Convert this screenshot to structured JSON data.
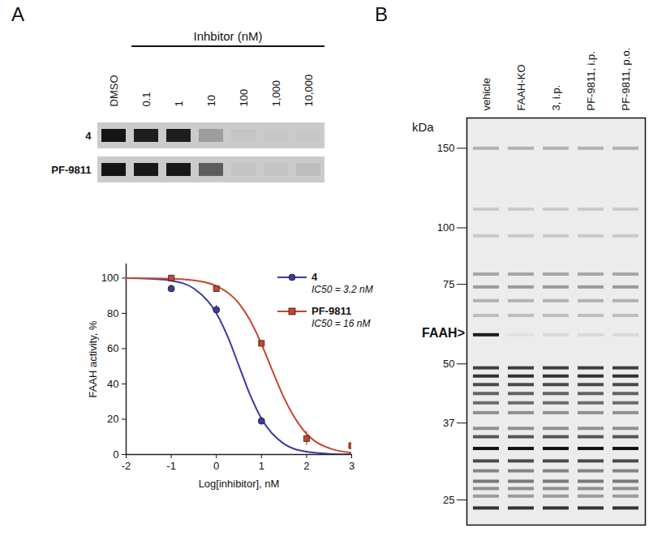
{
  "panel_labels": [
    "A",
    "B"
  ],
  "gel_a": {
    "header": "Inhbitor (nM)",
    "lanes": [
      "DMSO",
      "0.1",
      "1",
      "10",
      "100",
      "1,000",
      "10,000"
    ],
    "rows": [
      {
        "name": "4",
        "band_intensity": [
          100,
          95,
          95,
          25,
          3,
          2,
          2
        ]
      },
      {
        "name": "PF-9811",
        "band_intensity": [
          100,
          98,
          98,
          60,
          4,
          4,
          8
        ]
      }
    ]
  },
  "chart_data": {
    "type": "line",
    "x_label": "Log[inhibitor], nM",
    "y_label": "FAAH activity, %",
    "xlim": [
      -2,
      3
    ],
    "xticks": [
      -2,
      -1,
      0,
      1,
      2,
      3
    ],
    "ylim": [
      0,
      108
    ],
    "yticks": [
      0,
      20,
      40,
      60,
      80,
      100
    ],
    "grid": false,
    "legend": "top-right",
    "series": [
      {
        "name": "4",
        "color": "#3a3aa0",
        "marker": "circle",
        "annotation": "IC50 = 3.2 nM",
        "x": [
          -1,
          0,
          1
        ],
        "values": [
          94,
          82,
          19
        ],
        "errors": [
          2,
          2.5,
          2
        ],
        "fit": {
          "x": [
            -2,
            -1.5,
            -1,
            -0.5,
            0,
            0.25,
            0.5,
            0.75,
            1,
            1.5,
            2,
            2.5,
            3
          ],
          "values": [
            99.9,
            99.6,
            98.5,
            94.1,
            80.1,
            66.9,
            50.3,
            33.7,
            20.3,
            6.0,
            1.6,
            0.4,
            0.1
          ]
        }
      },
      {
        "name": "PF-9811",
        "color": "#c8442f",
        "marker": "square",
        "annotation": "IC50 = 16 nM",
        "x": [
          -1,
          0,
          1,
          2,
          3
        ],
        "values": [
          100,
          94,
          63,
          9,
          5
        ],
        "errors": [
          1.5,
          1.5,
          1.5,
          4,
          4
        ],
        "fit": {
          "x": [
            -2,
            -1.5,
            -1,
            -0.5,
            0,
            0.5,
            0.75,
            1,
            1.25,
            1.5,
            2,
            2.5,
            3
          ],
          "values": [
            100,
            99.9,
            99.6,
            98.7,
            95.5,
            85.6,
            75.9,
            62.6,
            47.1,
            32.1,
            11.7,
            3.6,
            1.0
          ]
        }
      }
    ]
  },
  "gel_b": {
    "lanes": [
      "vehicle",
      "FAAH-KO",
      "3, i.p.",
      "PF-9811, i.p.",
      "PF-9811, p.o."
    ],
    "y_label": "kDa",
    "kda_range": [
      22,
      175
    ],
    "kda_markers": [
      150,
      100,
      75,
      50,
      37,
      25
    ],
    "bands": [
      {
        "kda": 150,
        "intensity": 25
      },
      {
        "kda": 110,
        "intensity": 15
      },
      {
        "kda": 96,
        "intensity": 15
      },
      {
        "kda": 79,
        "intensity": 30
      },
      {
        "kda": 74,
        "intensity": 35
      },
      {
        "kda": 69,
        "intensity": 25
      },
      {
        "kda": 64,
        "intensity": 20
      },
      {
        "kda": 49,
        "intensity": 75
      },
      {
        "kda": 47,
        "intensity": 80
      },
      {
        "kda": 45,
        "intensity": 70
      },
      {
        "kda": 43,
        "intensity": 60
      },
      {
        "kda": 41,
        "intensity": 55
      },
      {
        "kda": 39,
        "intensity": 40
      },
      {
        "kda": 36,
        "intensity": 40
      },
      {
        "kda": 34.5,
        "intensity": 65
      },
      {
        "kda": 32.5,
        "intensity": 95
      },
      {
        "kda": 30.5,
        "intensity": 70
      },
      {
        "kda": 29,
        "intensity": 45
      },
      {
        "kda": 27.5,
        "intensity": 50
      },
      {
        "kda": 26.5,
        "intensity": 40
      },
      {
        "kda": 25.5,
        "intensity": 35
      },
      {
        "kda": 24,
        "intensity": 80
      }
    ],
    "faah": {
      "label": "FAAH>",
      "kda": 58,
      "intensity": [
        90,
        5,
        8,
        8,
        8
      ]
    }
  }
}
